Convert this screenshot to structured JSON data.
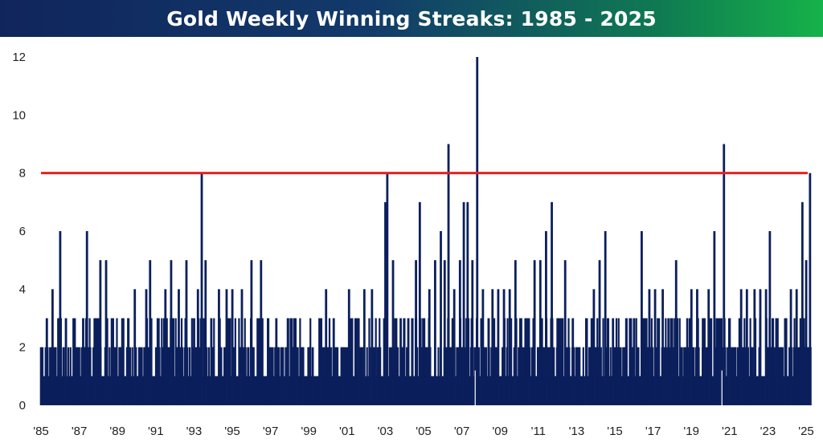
{
  "chart_data": {
    "type": "area",
    "title": "Gold Weekly Winning Streaks: 1985 - 2025",
    "xlabel": "",
    "ylabel": "",
    "x_tick_labels": [
      "'85",
      "'87",
      "'89",
      "'91",
      "'93",
      "'95",
      "'97",
      "'99",
      "'01",
      "'03",
      "'05",
      "'07",
      "'09",
      "'11",
      "'13",
      "'15",
      "'17",
      "'19",
      "'21",
      "'23",
      "'25"
    ],
    "x_tick_years": [
      1985,
      1987,
      1989,
      1991,
      1993,
      1995,
      1997,
      1999,
      2001,
      2003,
      2005,
      2007,
      2009,
      2011,
      2013,
      2015,
      2017,
      2019,
      2021,
      2023,
      2025
    ],
    "xlim": [
      1985,
      2025.5
    ],
    "ylim": [
      0,
      12
    ],
    "y_ticks": [
      0,
      2,
      4,
      6,
      8,
      10,
      12
    ],
    "y_tick_labels": [
      "0",
      "2",
      "4",
      "6",
      "8",
      "10",
      "12"
    ],
    "reference_line": {
      "y": 8,
      "color": "#e8201e"
    },
    "series_color": "#0b1f5c",
    "grid": false,
    "legend": "none",
    "peaks": [
      {
        "x": 1985.0,
        "y": 2
      },
      {
        "x": 1985.3,
        "y": 3
      },
      {
        "x": 1985.6,
        "y": 4
      },
      {
        "x": 1986.0,
        "y": 6
      },
      {
        "x": 1986.3,
        "y": 3
      },
      {
        "x": 1986.7,
        "y": 3
      },
      {
        "x": 1987.2,
        "y": 3
      },
      {
        "x": 1987.4,
        "y": 6
      },
      {
        "x": 1987.8,
        "y": 3
      },
      {
        "x": 1988.1,
        "y": 5
      },
      {
        "x": 1988.4,
        "y": 5
      },
      {
        "x": 1988.7,
        "y": 3
      },
      {
        "x": 1989.1,
        "y": 2
      },
      {
        "x": 1989.5,
        "y": 2
      },
      {
        "x": 1989.9,
        "y": 4
      },
      {
        "x": 1990.2,
        "y": 2
      },
      {
        "x": 1990.5,
        "y": 4
      },
      {
        "x": 1990.7,
        "y": 5
      },
      {
        "x": 1991.1,
        "y": 3
      },
      {
        "x": 1991.5,
        "y": 4
      },
      {
        "x": 1991.8,
        "y": 5
      },
      {
        "x": 1992.2,
        "y": 4
      },
      {
        "x": 1992.6,
        "y": 5
      },
      {
        "x": 1993.0,
        "y": 3
      },
      {
        "x": 1993.2,
        "y": 4
      },
      {
        "x": 1993.4,
        "y": 8
      },
      {
        "x": 1993.6,
        "y": 5
      },
      {
        "x": 1993.9,
        "y": 3
      },
      {
        "x": 1994.3,
        "y": 4
      },
      {
        "x": 1994.7,
        "y": 4
      },
      {
        "x": 1995.0,
        "y": 4
      },
      {
        "x": 1995.5,
        "y": 4
      },
      {
        "x": 1996.0,
        "y": 5
      },
      {
        "x": 1996.5,
        "y": 5
      },
      {
        "x": 1996.9,
        "y": 2
      },
      {
        "x": 1997.3,
        "y": 3
      },
      {
        "x": 1997.8,
        "y": 2
      },
      {
        "x": 1998.3,
        "y": 3
      },
      {
        "x": 1998.7,
        "y": 2
      },
      {
        "x": 1999.2,
        "y": 2
      },
      {
        "x": 1999.6,
        "y": 3
      },
      {
        "x": 1999.9,
        "y": 4
      },
      {
        "x": 2000.3,
        "y": 3
      },
      {
        "x": 2000.8,
        "y": 2
      },
      {
        "x": 2001.1,
        "y": 4
      },
      {
        "x": 2001.6,
        "y": 3
      },
      {
        "x": 2001.9,
        "y": 4
      },
      {
        "x": 2002.3,
        "y": 4
      },
      {
        "x": 2002.6,
        "y": 2
      },
      {
        "x": 2003.0,
        "y": 7
      },
      {
        "x": 2003.1,
        "y": 8
      },
      {
        "x": 2003.4,
        "y": 5
      },
      {
        "x": 2003.8,
        "y": 3
      },
      {
        "x": 2004.2,
        "y": 3
      },
      {
        "x": 2004.6,
        "y": 5
      },
      {
        "x": 2004.8,
        "y": 7
      },
      {
        "x": 2005.3,
        "y": 4
      },
      {
        "x": 2005.6,
        "y": 5
      },
      {
        "x": 2005.9,
        "y": 6
      },
      {
        "x": 2006.1,
        "y": 5
      },
      {
        "x": 2006.3,
        "y": 9
      },
      {
        "x": 2006.6,
        "y": 4
      },
      {
        "x": 2006.9,
        "y": 5
      },
      {
        "x": 2007.1,
        "y": 7
      },
      {
        "x": 2007.3,
        "y": 7
      },
      {
        "x": 2007.55,
        "y": 5
      },
      {
        "x": 2007.8,
        "y": 12
      },
      {
        "x": 2008.1,
        "y": 4
      },
      {
        "x": 2008.4,
        "y": 3
      },
      {
        "x": 2008.6,
        "y": 4
      },
      {
        "x": 2008.9,
        "y": 4
      },
      {
        "x": 2009.2,
        "y": 4
      },
      {
        "x": 2009.5,
        "y": 4
      },
      {
        "x": 2009.8,
        "y": 5
      },
      {
        "x": 2010.1,
        "y": 3
      },
      {
        "x": 2010.5,
        "y": 3
      },
      {
        "x": 2010.8,
        "y": 5
      },
      {
        "x": 2011.1,
        "y": 5
      },
      {
        "x": 2011.4,
        "y": 6
      },
      {
        "x": 2011.7,
        "y": 7
      },
      {
        "x": 2012.0,
        "y": 3
      },
      {
        "x": 2012.4,
        "y": 5
      },
      {
        "x": 2012.8,
        "y": 3
      },
      {
        "x": 2013.1,
        "y": 1
      },
      {
        "x": 2013.5,
        "y": 3
      },
      {
        "x": 2013.9,
        "y": 4
      },
      {
        "x": 2014.2,
        "y": 5
      },
      {
        "x": 2014.5,
        "y": 6
      },
      {
        "x": 2014.9,
        "y": 3
      },
      {
        "x": 2015.2,
        "y": 2
      },
      {
        "x": 2015.6,
        "y": 2
      },
      {
        "x": 2016.0,
        "y": 3
      },
      {
        "x": 2016.4,
        "y": 6
      },
      {
        "x": 2016.8,
        "y": 4
      },
      {
        "x": 2017.1,
        "y": 4
      },
      {
        "x": 2017.5,
        "y": 4
      },
      {
        "x": 2017.8,
        "y": 3
      },
      {
        "x": 2018.2,
        "y": 5
      },
      {
        "x": 2018.5,
        "y": 2
      },
      {
        "x": 2018.8,
        "y": 1
      },
      {
        "x": 2019.0,
        "y": 4
      },
      {
        "x": 2019.3,
        "y": 4
      },
      {
        "x": 2019.6,
        "y": 3
      },
      {
        "x": 2019.9,
        "y": 4
      },
      {
        "x": 2020.2,
        "y": 6
      },
      {
        "x": 2020.5,
        "y": 3
      },
      {
        "x": 2020.7,
        "y": 9
      },
      {
        "x": 2021.0,
        "y": 3
      },
      {
        "x": 2021.3,
        "y": 2
      },
      {
        "x": 2021.6,
        "y": 4
      },
      {
        "x": 2021.9,
        "y": 4
      },
      {
        "x": 2022.3,
        "y": 4
      },
      {
        "x": 2022.6,
        "y": 4
      },
      {
        "x": 2022.9,
        "y": 4
      },
      {
        "x": 2023.1,
        "y": 6
      },
      {
        "x": 2023.5,
        "y": 3
      },
      {
        "x": 2023.9,
        "y": 3
      },
      {
        "x": 2024.2,
        "y": 4
      },
      {
        "x": 2024.5,
        "y": 4
      },
      {
        "x": 2024.8,
        "y": 7
      },
      {
        "x": 2025.0,
        "y": 5
      },
      {
        "x": 2025.2,
        "y": 8
      }
    ]
  }
}
